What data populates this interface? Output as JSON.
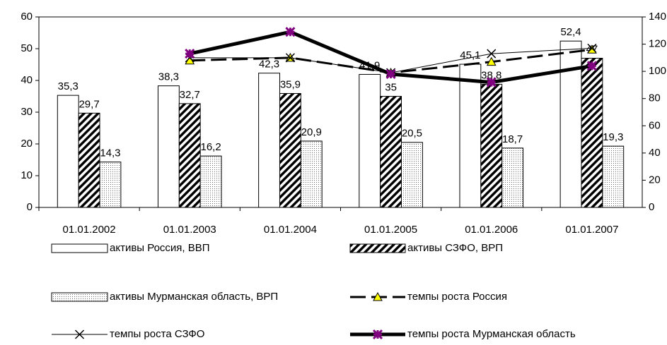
{
  "chart_data": {
    "type": "bar",
    "categories": [
      "01.01.2002",
      "01.01.2003",
      "01.01.2004",
      "01.01.2005",
      "01.01.2006",
      "01.01.2007"
    ],
    "ylim": [
      0,
      60
    ],
    "yticks": [
      0,
      10,
      20,
      30,
      40,
      50,
      60
    ],
    "y2lim": [
      0,
      140
    ],
    "y2ticks": [
      0,
      20,
      40,
      60,
      80,
      100,
      120,
      140
    ],
    "series": [
      {
        "name": "активы Россия, ВВП",
        "type": "bar",
        "color": "#ffffff",
        "pattern": "none",
        "values": [
          35.3,
          38.3,
          42.3,
          41.9,
          45.1,
          52.4
        ],
        "value_labels": [
          "35,3",
          "38,3",
          "42,3",
          "41,9",
          "45,1",
          "52,4"
        ]
      },
      {
        "name": "активы СЗФО, ВРП",
        "type": "bar",
        "color": "#000000",
        "pattern": "hatch",
        "values": [
          29.7,
          32.7,
          35.9,
          35,
          38.8,
          47
        ],
        "value_labels": [
          "29,7",
          "32,7",
          "35,9",
          "35",
          "38,8",
          "47"
        ]
      },
      {
        "name": "активы Мурманская область, ВРП",
        "type": "bar",
        "color": "#000000",
        "pattern": "dots",
        "values": [
          14.3,
          16.2,
          20.9,
          20.5,
          18.7,
          19.3
        ],
        "value_labels": [
          "14,3",
          "16,2",
          "20,9",
          "20,5",
          "18,7",
          "19,3"
        ]
      },
      {
        "name": "темпы роста Россия",
        "type": "line",
        "axis": "y2",
        "color": "#000000",
        "dash": true,
        "width": 3,
        "marker": "triangle",
        "marker_color": "#ffff00",
        "values": [
          null,
          108,
          110,
          99,
          107,
          116
        ]
      },
      {
        "name": "темпы роста СЗФО",
        "type": "line",
        "axis": "y2",
        "color": "#000000",
        "dash": false,
        "width": 1,
        "marker": "cross",
        "marker_color": "#000000",
        "values": [
          null,
          110,
          110,
          99,
          113,
          117
        ]
      },
      {
        "name": "темпы роста Мурманская область",
        "type": "line",
        "axis": "y2",
        "color": "#000000",
        "dash": false,
        "width": 5,
        "marker": "star",
        "marker_color": "#800080",
        "values": [
          null,
          113,
          129,
          98,
          92,
          104
        ]
      }
    ]
  }
}
